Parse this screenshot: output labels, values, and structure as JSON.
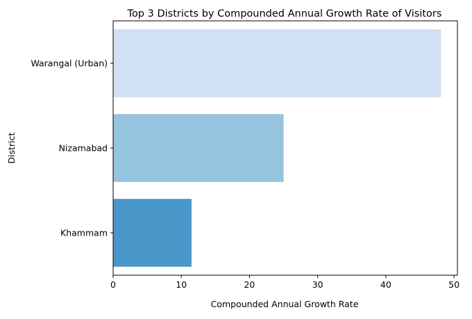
{
  "chart_data": {
    "type": "bar",
    "orientation": "horizontal",
    "title": "Top 3 Districts by Compounded Annual Growth Rate of Visitors",
    "xlabel": "Compounded Annual Growth Rate",
    "ylabel": "District",
    "categories": [
      "Warangal (Urban)",
      "Nizamabad",
      "Khammam"
    ],
    "values": [
      48.1,
      25.0,
      11.5
    ],
    "colors": [
      "#cfe1f2",
      "#94c4df",
      "#4a98c9"
    ],
    "xlim": [
      0,
      50.5
    ],
    "xticks": [
      0,
      10,
      20,
      30,
      40,
      50
    ],
    "grid": false
  }
}
